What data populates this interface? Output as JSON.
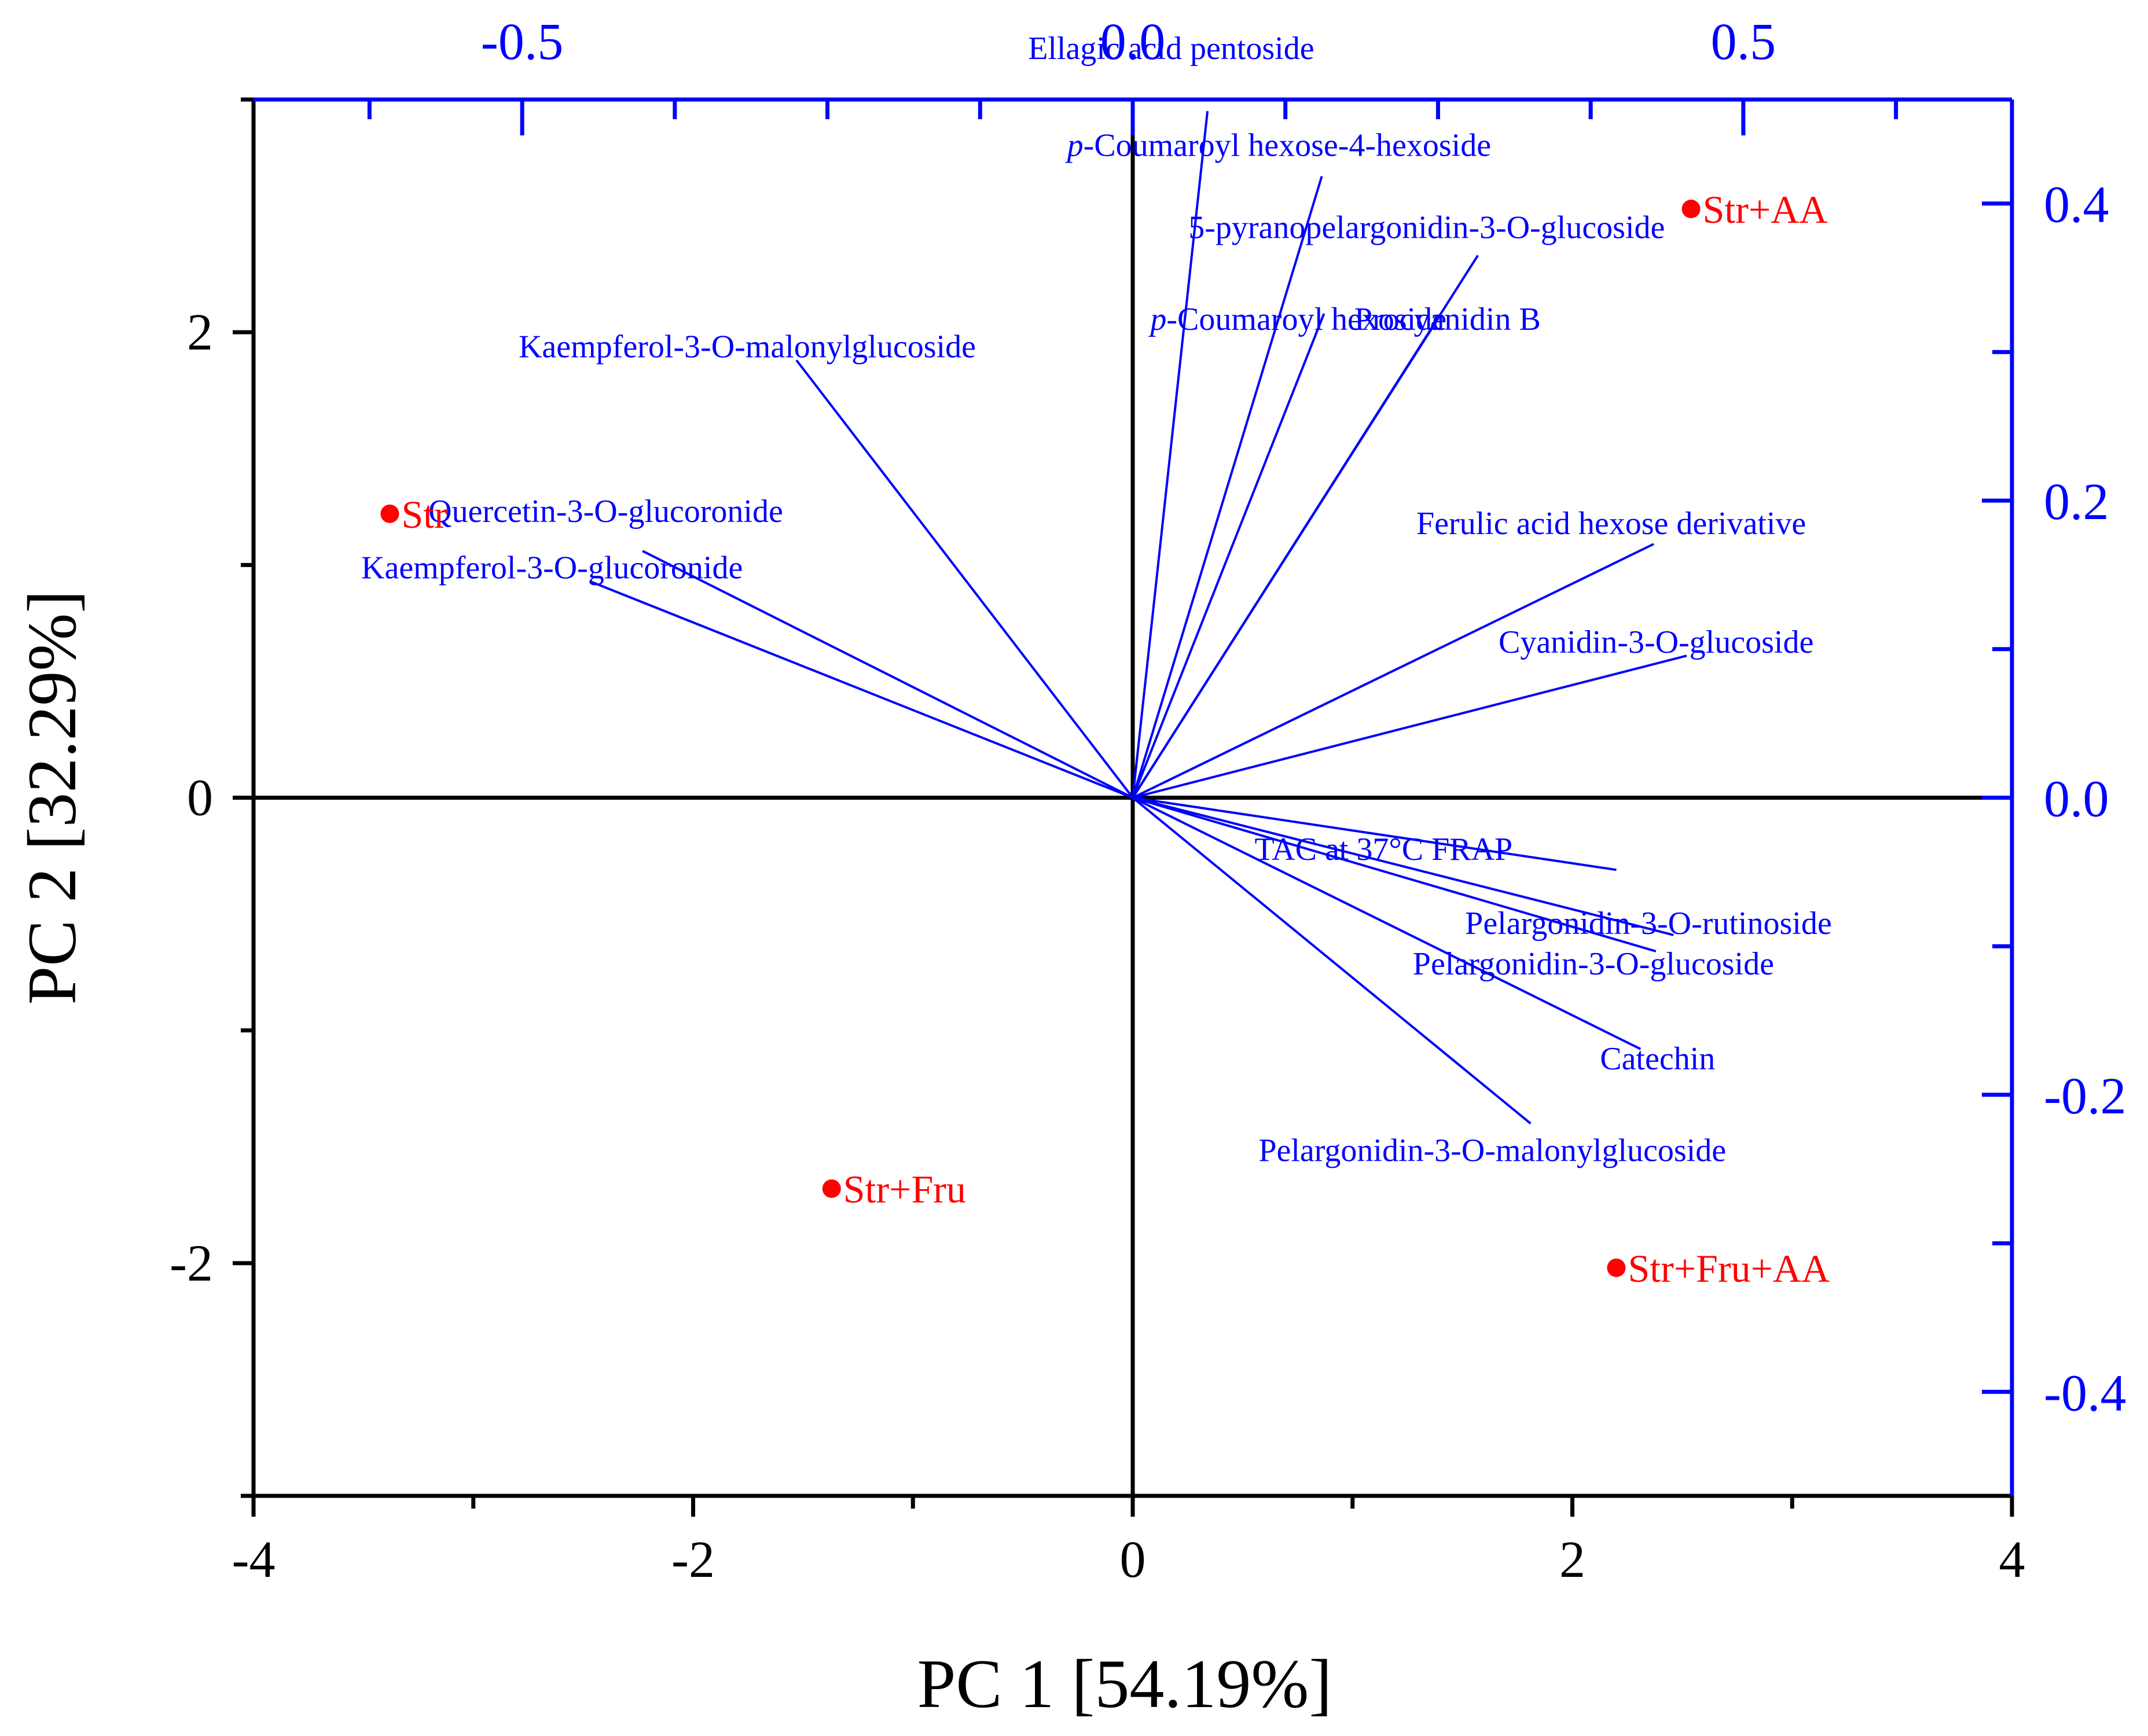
{
  "chart_data": {
    "type": "biplot",
    "xlabel": "PC 1 [54.19%]",
    "ylabel": "PC 2 [32.29%]",
    "score_axes": {
      "xlim": [
        -4,
        4
      ],
      "ylim": [
        -3.0,
        3.0
      ],
      "xticks": [
        -4,
        -2,
        0,
        2,
        4
      ],
      "xtick_labels": [
        "-4",
        "-2",
        "0",
        "2",
        "4"
      ],
      "yticks": [
        -2,
        0,
        2
      ],
      "ytick_labels": [
        "-2",
        "0",
        "2"
      ]
    },
    "loading_axes": {
      "xlim": [
        -0.72,
        0.72
      ],
      "ylim": [
        -0.47,
        0.47
      ],
      "xticks": [
        -0.5,
        0.0,
        0.5
      ],
      "xtick_labels": [
        "-0.5",
        "0.0",
        "0.5"
      ],
      "yticks": [
        0.4,
        0.2,
        0.0,
        -0.2,
        -0.4
      ],
      "ytick_labels": [
        "0.4",
        "0.2",
        "0.0",
        "-0.2",
        "-0.4"
      ]
    },
    "scores": [
      {
        "name": "Str",
        "x": -3.38,
        "y": 1.22
      },
      {
        "name": "Str+AA",
        "x": 2.54,
        "y": 2.53
      },
      {
        "name": "Str+Fru",
        "x": -1.37,
        "y": -1.68
      },
      {
        "name": "Str+Fru+AA",
        "x": 2.2,
        "y": -2.02
      }
    ],
    "loadings": [
      {
        "name": "Ellagic acid pentoside",
        "x": 0.34,
        "y": 2.95,
        "italic_prefix": ""
      },
      {
        "name": "Coumaroyl hexose-4-hexoside",
        "x": 0.86,
        "y": 2.67,
        "italic_prefix": "p-"
      },
      {
        "name": "5-pyranopelargonidin-3-O-glucoside",
        "x": 1.57,
        "y": 2.33,
        "italic_prefix": ""
      },
      {
        "name": "Procyanidin B",
        "x": 1.39,
        "y": 2.06,
        "italic_prefix": ""
      },
      {
        "name": "Coumaroyl hexoside",
        "x": 0.87,
        "y": 2.08,
        "italic_prefix": "p-"
      },
      {
        "name": "Kaempferol-3-O-malonylglucoside",
        "x": -1.53,
        "y": 1.88,
        "italic_prefix": ""
      },
      {
        "name": "Quercetin-3-O-glucoronide",
        "x": -2.23,
        "y": 1.06,
        "italic_prefix": ""
      },
      {
        "name": "Kaempferol-3-O-glucoronide",
        "x": -2.47,
        "y": 0.93,
        "italic_prefix": ""
      },
      {
        "name": "Ferulic acid hexose derivative",
        "x": 2.37,
        "y": 1.09,
        "italic_prefix": ""
      },
      {
        "name": "Cyanidin-3-O-glucoside",
        "x": 2.52,
        "y": 0.61,
        "italic_prefix": ""
      },
      {
        "name": "TAC at 37°C FRAP",
        "x": 2.2,
        "y": -0.31,
        "italic_prefix": ""
      },
      {
        "name": "Pelargonidin-3-O-rutinoside",
        "x": 2.46,
        "y": -0.59,
        "italic_prefix": ""
      },
      {
        "name": "Pelargonidin-3-O-glucoside",
        "x": 2.38,
        "y": -0.66,
        "italic_prefix": ""
      },
      {
        "name": "Catechin",
        "x": 2.31,
        "y": -1.08,
        "italic_prefix": ""
      },
      {
        "name": "Pelargonidin-3-O-malonylglucoside",
        "x": 1.81,
        "y": -1.4,
        "italic_prefix": ""
      }
    ],
    "colors": {
      "axes": "#000000",
      "loadings": "#0000ff",
      "scores": "#ff0000"
    }
  }
}
